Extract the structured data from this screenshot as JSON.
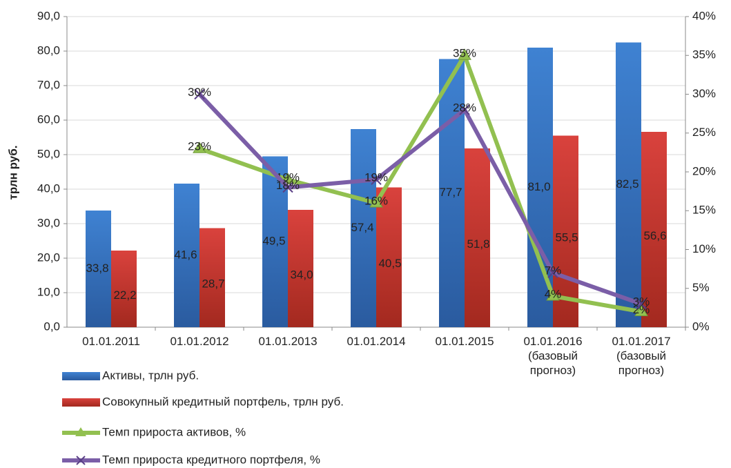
{
  "chart_data": {
    "type": "bar-line",
    "y_label": "трлн руб.",
    "categories": [
      "01.01.2011",
      "01.01.2012",
      "01.01.2013",
      "01.01.2014",
      "01.01.2015",
      "01.01.2016\n(базовый\nпрогноз)",
      "01.01.2017\n(базовый\nпрогноз)"
    ],
    "ylim": [
      0,
      90
    ],
    "yticks": [
      {
        "value": 0,
        "label": "0,0"
      },
      {
        "value": 10,
        "label": "10,0"
      },
      {
        "value": 20,
        "label": "20,0"
      },
      {
        "value": 30,
        "label": "30,0"
      },
      {
        "value": 40,
        "label": "40,0"
      },
      {
        "value": 50,
        "label": "50,0"
      },
      {
        "value": 60,
        "label": "60,0"
      },
      {
        "value": 70,
        "label": "70,0"
      },
      {
        "value": 80,
        "label": "80,0"
      },
      {
        "value": 90,
        "label": "90,0"
      }
    ],
    "y2lim": [
      0,
      40
    ],
    "y2ticks": [
      {
        "value": 0,
        "label": "0%"
      },
      {
        "value": 5,
        "label": "5%"
      },
      {
        "value": 10,
        "label": "10%"
      },
      {
        "value": 15,
        "label": "15%"
      },
      {
        "value": 20,
        "label": "20%"
      },
      {
        "value": 25,
        "label": "25%"
      },
      {
        "value": 30,
        "label": "30%"
      },
      {
        "value": 35,
        "label": "35%"
      },
      {
        "value": 40,
        "label": "40%"
      }
    ],
    "grid": true,
    "series": [
      {
        "name": "Активы, трлн руб.",
        "type": "bar",
        "color": "#3a79c6",
        "values": [
          33.8,
          41.6,
          49.5,
          57.4,
          77.7,
          81.0,
          82.5
        ],
        "value_labels": [
          "33,8",
          "41,6",
          "49,5",
          "57,4",
          "77,7",
          "81,0",
          "82,5"
        ]
      },
      {
        "name": "Совокупный кредитный портфель, трлн руб.",
        "type": "bar",
        "color": "#c8332f",
        "values": [
          22.2,
          28.7,
          34.0,
          40.5,
          51.8,
          55.5,
          56.6
        ],
        "value_labels": [
          "22,2",
          "28,7",
          "34,0",
          "40,5",
          "51,8",
          "55,5",
          "56,6"
        ]
      },
      {
        "name": "Темп прироста активов, %",
        "type": "line",
        "axis": "y2",
        "color": "#92c050",
        "marker": "triangle",
        "values": [
          null,
          23,
          19,
          16,
          35,
          4,
          2
        ],
        "value_labels": [
          null,
          "23%",
          "19%",
          "16%",
          "35%",
          "4%",
          "2%"
        ]
      },
      {
        "name": "Темп прироста кредитного портфеля, %",
        "type": "line",
        "axis": "y2",
        "color": "#7b5ea7",
        "marker": "x",
        "values": [
          null,
          30,
          18,
          19,
          28,
          7,
          3
        ],
        "value_labels": [
          null,
          "30%",
          "18%",
          "19%",
          "28%",
          "7%",
          "3%"
        ]
      }
    ]
  }
}
